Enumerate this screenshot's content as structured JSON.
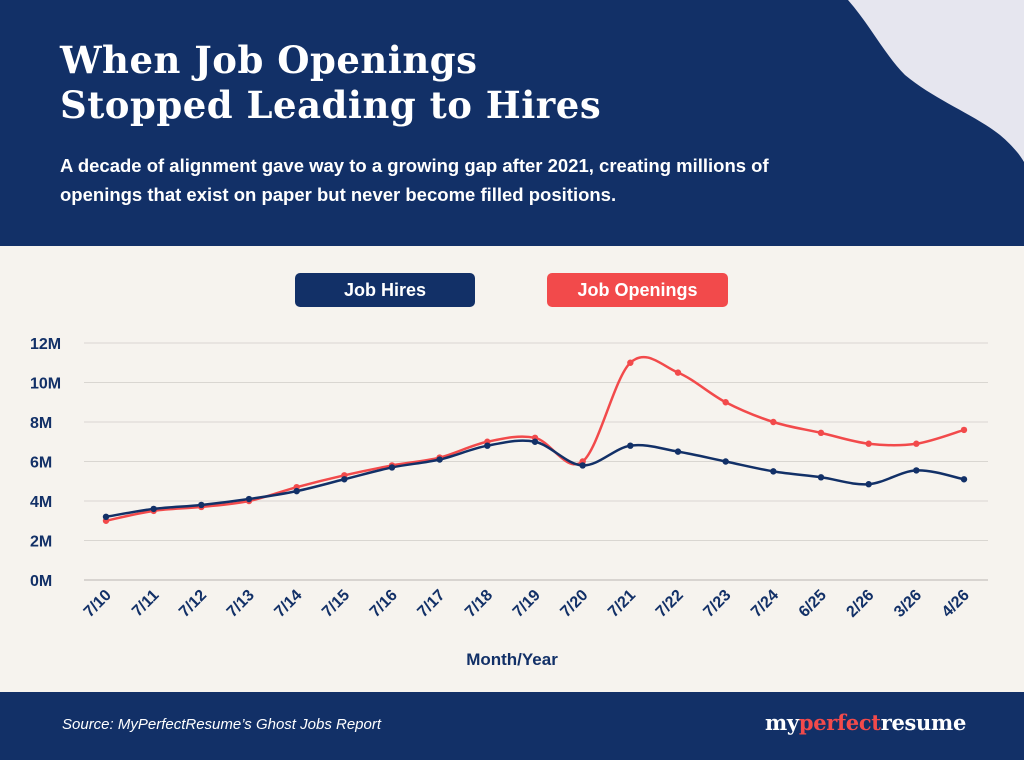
{
  "header": {
    "title_lines": [
      "When Job Openings",
      "Stopped Leading to Hires"
    ],
    "subtitle_lines": [
      "A decade of alignment gave way to a growing gap after 2021, creating millions of",
      "openings that exist on paper but never become filled positions."
    ]
  },
  "colors": {
    "navy": "#123067",
    "red": "#f24a4b",
    "background": "#f6f3ee",
    "grid": "#d9d6d1"
  },
  "chart_data": {
    "type": "line",
    "title": "",
    "xlabel": "Month/Year",
    "ylabel": "",
    "categories": [
      "7/10",
      "7/11",
      "7/12",
      "7/13",
      "7/14",
      "7/15",
      "7/16",
      "7/17",
      "7/18",
      "7/19",
      "7/20",
      "7/21",
      "7/22",
      "7/23",
      "7/24",
      "6/25",
      "2/26",
      "3/26",
      "4/26"
    ],
    "ylim": [
      0,
      12
    ],
    "yticks": [
      0,
      2,
      4,
      6,
      8,
      10,
      12
    ],
    "ytick_labels": [
      "0M",
      "2M",
      "4M",
      "6M",
      "8M",
      "10M",
      "12M"
    ],
    "grid": true,
    "legend_position": "top-center",
    "series": [
      {
        "name": "Job Hires",
        "color": "#123067",
        "values": [
          3.2,
          3.6,
          3.8,
          4.1,
          4.5,
          5.1,
          5.7,
          6.1,
          6.8,
          7.0,
          5.8,
          6.8,
          6.5,
          6.0,
          5.5,
          5.2,
          4.85,
          5.55,
          5.1
        ]
      },
      {
        "name": "Job Openings",
        "color": "#f24a4b",
        "values": [
          3.0,
          3.5,
          3.7,
          4.0,
          4.7,
          5.3,
          5.8,
          6.2,
          7.0,
          7.2,
          6.0,
          11.0,
          10.5,
          9.0,
          8.0,
          7.45,
          6.9,
          6.9,
          7.6
        ]
      }
    ]
  },
  "footer": {
    "source": "Source: MyPerfectResume’s Ghost Jobs Report",
    "logo_part1": "my",
    "logo_part2": "perfect",
    "logo_part3": "resume"
  }
}
